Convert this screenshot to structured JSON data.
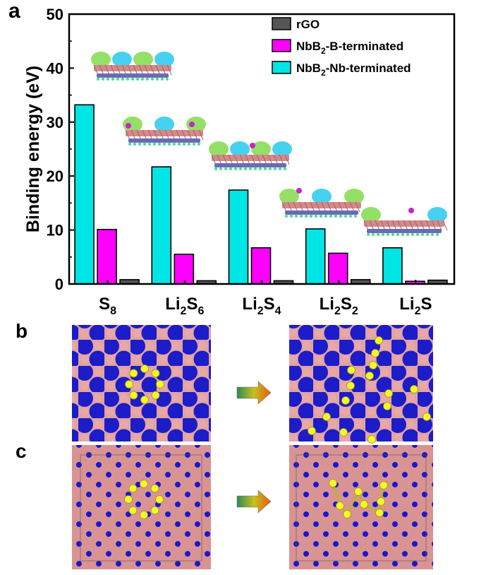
{
  "panel_labels": {
    "a": "a",
    "b": "b",
    "c": "c"
  },
  "colors": {
    "rgo": "#555555",
    "b_terminated": "#ff00ff",
    "nb_terminated": "#00e5e5",
    "nb_atom": "#1a1ad6",
    "b_atom": "#e8a0a0",
    "s_atom": "#f2f21a"
  },
  "chart_data": {
    "type": "bar",
    "categories": [
      "S8",
      "Li2S6",
      "Li2S4",
      "Li2S2",
      "Li2S"
    ],
    "category_labels": [
      {
        "base": "S",
        "sub1": "8",
        "mid": "",
        "sub2": ""
      },
      {
        "base": "Li",
        "sub1": "2",
        "mid": "S",
        "sub2": "6"
      },
      {
        "base": "Li",
        "sub1": "2",
        "mid": "S",
        "sub2": "4"
      },
      {
        "base": "Li",
        "sub1": "2",
        "mid": "S",
        "sub2": "2"
      },
      {
        "base": "Li",
        "sub1": "2",
        "mid": "S",
        "sub2": ""
      }
    ],
    "series": [
      {
        "name": "NbB2-Nb-terminated",
        "legend": {
          "pre": "NbB",
          "sub": "2",
          "post": "-Nb-terminated"
        },
        "color": "#00e5e5",
        "values": [
          33.2,
          21.7,
          17.4,
          10.2,
          6.7
        ]
      },
      {
        "name": "NbB2-B-terminated",
        "legend": {
          "pre": "NbB",
          "sub": "2",
          "post": "-B-terminated"
        },
        "color": "#ff00ff",
        "values": [
          10.1,
          5.5,
          6.7,
          5.7,
          0.5
        ]
      },
      {
        "name": "rGO",
        "legend": {
          "pre": "rGO",
          "sub": "",
          "post": ""
        },
        "color": "#555555",
        "values": [
          0.8,
          0.6,
          0.6,
          0.8,
          0.7
        ]
      }
    ],
    "legend_order": [
      2,
      1,
      0
    ],
    "ylabel": "Binding energy (eV)",
    "ylim": [
      0,
      50
    ],
    "yticks": [
      0,
      10,
      20,
      30,
      40,
      50
    ],
    "legend_position": "top-right",
    "grid": false
  },
  "panels": {
    "b": {
      "arrow": "right-arrow"
    },
    "c": {
      "arrow": "right-arrow"
    }
  }
}
